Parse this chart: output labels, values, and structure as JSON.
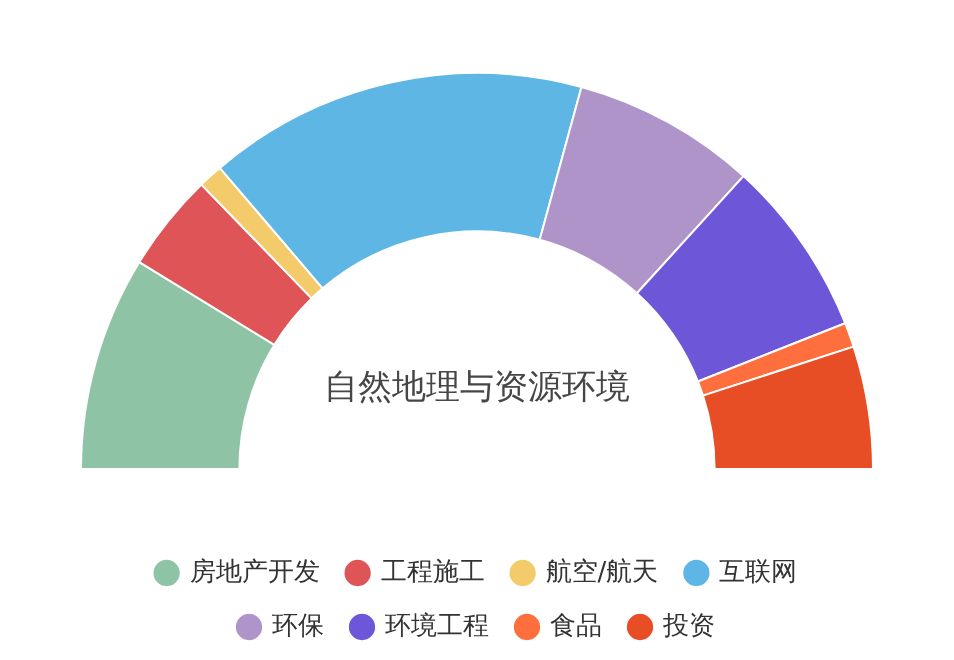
{
  "chart_data": {
    "type": "donut",
    "title": "自然地理与资源环境",
    "categories": [
      "房地产开发",
      "工程施工",
      "航空/航天",
      "互联网",
      "环保",
      "环境工程",
      "食品",
      "投资"
    ],
    "values": [
      17.5,
      8,
      2,
      31,
      15,
      14.5,
      2,
      10
    ],
    "colors": [
      "#8fc3a6",
      "#de5457",
      "#f3cb6b",
      "#5db6e4",
      "#ae94c9",
      "#6e56d9",
      "#fe6f3d",
      "#e84e26"
    ],
    "legend": "bottom"
  }
}
